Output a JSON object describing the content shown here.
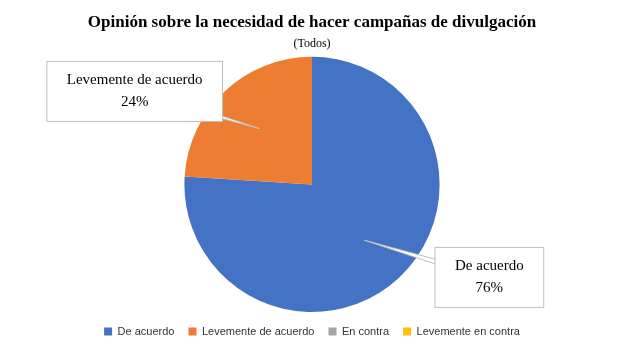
{
  "chart_data": {
    "type": "pie",
    "title": "Opinión sobre la necesidad de hacer campañas de divulgación",
    "subtitle": "(Todos)",
    "categories": [
      "De acuerdo",
      "Levemente de acuerdo",
      "En contra",
      "Levemente en contra"
    ],
    "values": [
      76,
      24,
      0,
      0
    ],
    "value_labels": [
      "76%",
      "24%",
      null,
      null
    ],
    "colors": [
      "#4472c4",
      "#ed7d31",
      "#a5a5a5",
      "#ffc000"
    ],
    "legend": "bottom",
    "data_labels": true
  }
}
